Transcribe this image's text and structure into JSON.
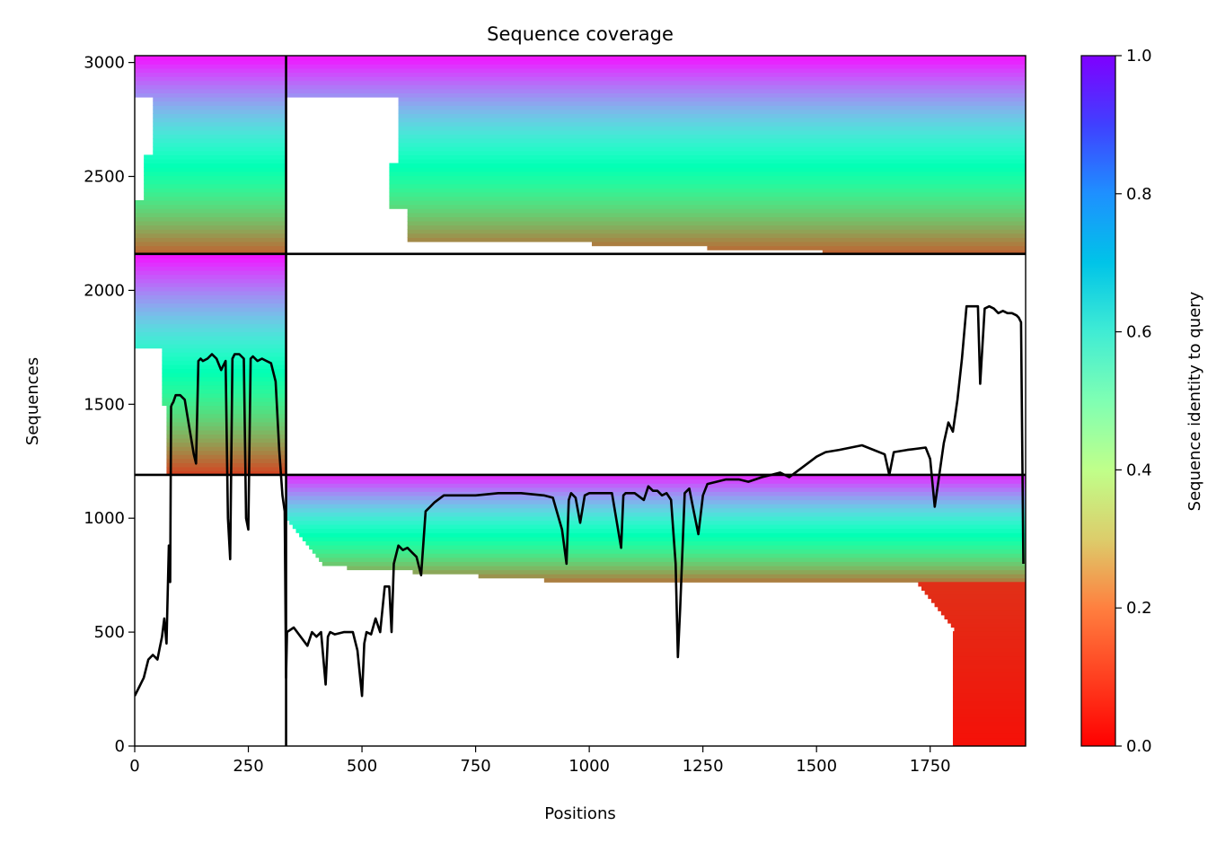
{
  "chart_data": {
    "type": "heatmap",
    "title": "Sequence coverage",
    "xlabel": "Positions",
    "ylabel": "Sequences",
    "xlim": [
      0,
      1960
    ],
    "ylim": [
      0,
      3030
    ],
    "xticks": [
      0,
      250,
      500,
      750,
      1000,
      1250,
      1500,
      1750
    ],
    "yticks": [
      0,
      500,
      1000,
      1500,
      2000,
      2500,
      3000
    ],
    "colorbar": {
      "label": "Sequence identity to query",
      "range": [
        0.0,
        1.0
      ],
      "ticks": [
        "0.0",
        "0.2",
        "0.4",
        "0.6",
        "0.8",
        "1.0"
      ],
      "colormap": "rainbow_r",
      "colors": [
        "#ff0000",
        "#ff7f3f",
        "#c0ff8a",
        "#5ff5c8",
        "#00b4eb",
        "#7f00ff"
      ]
    },
    "segments": [
      {
        "name": "",
        "x_range": [
          0,
          333
        ],
        "y_range": [
          2160,
          3030
        ]
      },
      {
        "name": "",
        "x_range": [
          333,
          1960
        ],
        "y_range": [
          2160,
          3030
        ]
      },
      {
        "name": "",
        "x_range": [
          0,
          333
        ],
        "y_range": [
          1190,
          2160
        ]
      },
      {
        "name": "",
        "x_range": [
          333,
          1960
        ],
        "y_range": [
          0,
          1190
        ]
      }
    ],
    "boundaries": {
      "x": [
        333
      ],
      "y": [
        1190,
        2160
      ]
    },
    "coverage_line": {
      "x": [
        0,
        10,
        20,
        30,
        40,
        45,
        50,
        55,
        60,
        65,
        70,
        75,
        78,
        80,
        82,
        85,
        90,
        100,
        110,
        120,
        130,
        135,
        140,
        145,
        150,
        160,
        170,
        180,
        190,
        200,
        205,
        210,
        215,
        220,
        230,
        240,
        245,
        250,
        255,
        260,
        270,
        280,
        290,
        300,
        310,
        318,
        325,
        330,
        333,
        335,
        350,
        380,
        390,
        400,
        410,
        420,
        425,
        430,
        440,
        460,
        480,
        490,
        500,
        505,
        510,
        520,
        530,
        540,
        550,
        560,
        565,
        570,
        580,
        590,
        600,
        610,
        620,
        630,
        640,
        645,
        650,
        660,
        680,
        700,
        750,
        800,
        850,
        900,
        920,
        940,
        950,
        955,
        960,
        970,
        980,
        990,
        1000,
        1020,
        1050,
        1070,
        1075,
        1080,
        1100,
        1120,
        1130,
        1140,
        1150,
        1160,
        1170,
        1180,
        1190,
        1195,
        1200,
        1210,
        1220,
        1230,
        1240,
        1250,
        1260,
        1300,
        1330,
        1350,
        1380,
        1400,
        1420,
        1440,
        1460,
        1480,
        1500,
        1520,
        1550,
        1600,
        1650,
        1660,
        1670,
        1700,
        1740,
        1750,
        1760,
        1780,
        1790,
        1800,
        1810,
        1820,
        1830,
        1840,
        1850,
        1855,
        1860,
        1870,
        1880,
        1890,
        1900,
        1910,
        1920,
        1930,
        1940,
        1945,
        1950,
        1955
      ],
      "y": [
        220,
        260,
        300,
        380,
        400,
        390,
        380,
        430,
        480,
        560,
        450,
        880,
        720,
        1490,
        1500,
        1510,
        1540,
        1540,
        1520,
        1400,
        1280,
        1240,
        1690,
        1700,
        1690,
        1700,
        1720,
        1700,
        1650,
        1690,
        1000,
        820,
        1700,
        1720,
        1720,
        1700,
        1000,
        950,
        1700,
        1710,
        1690,
        1700,
        1690,
        1680,
        1600,
        1300,
        1100,
        1030,
        300,
        500,
        520,
        440,
        500,
        480,
        500,
        270,
        480,
        500,
        490,
        500,
        500,
        420,
        220,
        450,
        500,
        490,
        560,
        500,
        700,
        700,
        500,
        800,
        880,
        860,
        870,
        850,
        830,
        750,
        1030,
        1040,
        1050,
        1070,
        1100,
        1100,
        1100,
        1110,
        1110,
        1100,
        1090,
        950,
        800,
        1080,
        1110,
        1090,
        980,
        1100,
        1110,
        1110,
        1110,
        870,
        1100,
        1110,
        1110,
        1080,
        1140,
        1120,
        1120,
        1100,
        1110,
        1080,
        800,
        390,
        600,
        1110,
        1130,
        1030,
        930,
        1100,
        1150,
        1170,
        1170,
        1160,
        1180,
        1190,
        1200,
        1180,
        1210,
        1240,
        1270,
        1290,
        1300,
        1320,
        1280,
        1190,
        1290,
        1300,
        1310,
        1260,
        1050,
        1330,
        1420,
        1380,
        1520,
        1700,
        1930,
        1930,
        1930,
        1930,
        1590,
        1920,
        1930,
        1920,
        1900,
        1910,
        1900,
        1900,
        1890,
        1880,
        1860,
        800,
        200
      ]
    }
  }
}
